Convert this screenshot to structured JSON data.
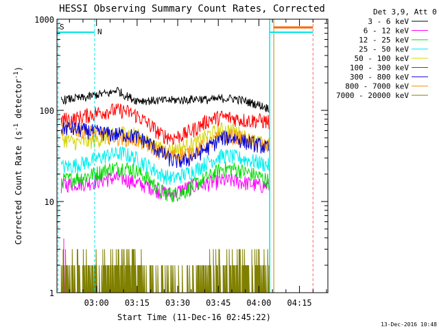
{
  "chart_data": {
    "type": "line",
    "title": "HESSI Observing Summary Count Rates, Corrected",
    "xlabel": "Start Time (11-Dec-16 02:45:22)",
    "ylabel": "Corrected Count Rate (s",
    "ylabel_sup1": "-1",
    "ylabel_mid": " detector",
    "ylabel_sup2": "-1",
    "ylabel_end": ")",
    "xlim": [
      "02:45:22",
      "04:25:30"
    ],
    "ylim": [
      1,
      1000
    ],
    "yscale": "log",
    "x_ticks": [
      "03:00",
      "03:15",
      "03:30",
      "03:45",
      "04:00",
      "04:15"
    ],
    "y_ticks": [
      "1",
      "10",
      "100",
      "1000"
    ],
    "legend_title": "Det 3,9, Att 0",
    "legend_position": "outside-right",
    "colors": {
      "s": "#ff8c00",
      "n": "#00e5e5",
      "boundary": "#00e5e5",
      "orange_bar": "#ff6600"
    },
    "series": [
      {
        "name": "3 - 6 keV",
        "color": "#000000",
        "profile": [
          [
            0,
            130
          ],
          [
            10,
            135
          ],
          [
            20,
            138
          ],
          [
            30,
            150
          ],
          [
            40,
            155
          ],
          [
            45,
            170
          ],
          [
            50,
            150
          ],
          [
            60,
            130
          ],
          [
            70,
            128
          ],
          [
            80,
            128
          ],
          [
            90,
            130
          ],
          [
            100,
            130
          ],
          [
            110,
            135
          ],
          [
            120,
            130
          ],
          [
            130,
            135
          ],
          [
            140,
            135
          ],
          [
            150,
            125
          ],
          [
            160,
            115
          ],
          [
            168,
            105
          ]
        ]
      },
      {
        "name": "6 - 12 keV",
        "color": "#ff00ff",
        "profile": [
          [
            0,
            15
          ],
          [
            10,
            16
          ],
          [
            20,
            16
          ],
          [
            30,
            17
          ],
          [
            40,
            18
          ],
          [
            50,
            18
          ],
          [
            60,
            16
          ],
          [
            70,
            15
          ],
          [
            80,
            13
          ],
          [
            90,
            12
          ],
          [
            100,
            14
          ],
          [
            110,
            15
          ],
          [
            120,
            16
          ],
          [
            130,
            17
          ],
          [
            140,
            17
          ],
          [
            150,
            16
          ],
          [
            160,
            15
          ],
          [
            168,
            15
          ]
        ]
      },
      {
        "name": "12 - 25 keV",
        "color": "#00dd00",
        "profile": [
          [
            0,
            17
          ],
          [
            10,
            18
          ],
          [
            20,
            19
          ],
          [
            30,
            21
          ],
          [
            40,
            23
          ],
          [
            50,
            24
          ],
          [
            60,
            22
          ],
          [
            70,
            18
          ],
          [
            80,
            13
          ],
          [
            90,
            12
          ],
          [
            100,
            13
          ],
          [
            110,
            16
          ],
          [
            120,
            19
          ],
          [
            130,
            23
          ],
          [
            140,
            23
          ],
          [
            150,
            21
          ],
          [
            160,
            19
          ],
          [
            168,
            17
          ]
        ]
      },
      {
        "name": "25 - 50 keV",
        "color": "#00eeee",
        "profile": [
          [
            0,
            24
          ],
          [
            10,
            25
          ],
          [
            20,
            27
          ],
          [
            30,
            30
          ],
          [
            40,
            33
          ],
          [
            50,
            34
          ],
          [
            60,
            30
          ],
          [
            70,
            25
          ],
          [
            80,
            20
          ],
          [
            90,
            18
          ],
          [
            100,
            20
          ],
          [
            110,
            23
          ],
          [
            120,
            28
          ],
          [
            130,
            32
          ],
          [
            140,
            31
          ],
          [
            150,
            29
          ],
          [
            160,
            27
          ],
          [
            168,
            25
          ]
        ]
      },
      {
        "name": "50 - 100 keV",
        "color": "#d4d400",
        "profile": [
          [
            0,
            50
          ],
          [
            10,
            45
          ],
          [
            20,
            45
          ],
          [
            30,
            48
          ],
          [
            40,
            52
          ],
          [
            50,
            58
          ],
          [
            60,
            55
          ],
          [
            70,
            45
          ],
          [
            80,
            38
          ],
          [
            90,
            37
          ],
          [
            100,
            40
          ],
          [
            110,
            45
          ],
          [
            120,
            55
          ],
          [
            130,
            62
          ],
          [
            140,
            60
          ],
          [
            150,
            50
          ],
          [
            160,
            44
          ],
          [
            168,
            42
          ]
        ]
      },
      {
        "name": "100 - 300 keV",
        "color": "#ff0000",
        "profile": [
          [
            0,
            80
          ],
          [
            10,
            80
          ],
          [
            20,
            88
          ],
          [
            30,
            95
          ],
          [
            40,
            100
          ],
          [
            50,
            100
          ],
          [
            60,
            90
          ],
          [
            70,
            72
          ],
          [
            80,
            55
          ],
          [
            90,
            50
          ],
          [
            100,
            55
          ],
          [
            110,
            65
          ],
          [
            120,
            80
          ],
          [
            130,
            85
          ],
          [
            140,
            82
          ],
          [
            150,
            78
          ],
          [
            160,
            78
          ],
          [
            168,
            75
          ]
        ]
      },
      {
        "name": "300 - 800 keV",
        "color": "#0000dd",
        "profile": [
          [
            0,
            65
          ],
          [
            10,
            63
          ],
          [
            20,
            60
          ],
          [
            30,
            58
          ],
          [
            40,
            55
          ],
          [
            50,
            55
          ],
          [
            60,
            52
          ],
          [
            70,
            45
          ],
          [
            80,
            35
          ],
          [
            90,
            28
          ],
          [
            100,
            28
          ],
          [
            110,
            33
          ],
          [
            120,
            40
          ],
          [
            130,
            50
          ],
          [
            140,
            50
          ],
          [
            150,
            45
          ],
          [
            160,
            42
          ],
          [
            168,
            38
          ]
        ]
      },
      {
        "name": "800 - 7000 keV",
        "color": "#ff8c00",
        "profile": [
          [
            0,
            65
          ],
          [
            10,
            63
          ],
          [
            20,
            60
          ],
          [
            30,
            56
          ],
          [
            40,
            52
          ],
          [
            50,
            50
          ],
          [
            60,
            48
          ],
          [
            70,
            42
          ],
          [
            80,
            35
          ],
          [
            90,
            32
          ],
          [
            100,
            33
          ],
          [
            110,
            37
          ],
          [
            120,
            44
          ],
          [
            130,
            52
          ],
          [
            140,
            52
          ],
          [
            150,
            47
          ],
          [
            160,
            42
          ],
          [
            168,
            40
          ]
        ]
      },
      {
        "name": "7000 - 20000 keV",
        "color": "#808000",
        "profile": [
          [
            0,
            1.7
          ],
          [
            20,
            1.7
          ],
          [
            40,
            1.9
          ],
          [
            55,
            2.2
          ],
          [
            70,
            1.5
          ],
          [
            90,
            1
          ],
          [
            110,
            1.2
          ],
          [
            130,
            1.9
          ],
          [
            150,
            1.9
          ],
          [
            168,
            1.7
          ]
        ]
      }
    ],
    "markers": [
      {
        "label": "S",
        "color": "#ff8c00"
      },
      {
        "label": "N",
        "color": "#00e5e5"
      }
    ],
    "timestamp": "13-Dec-2016 10:48"
  }
}
